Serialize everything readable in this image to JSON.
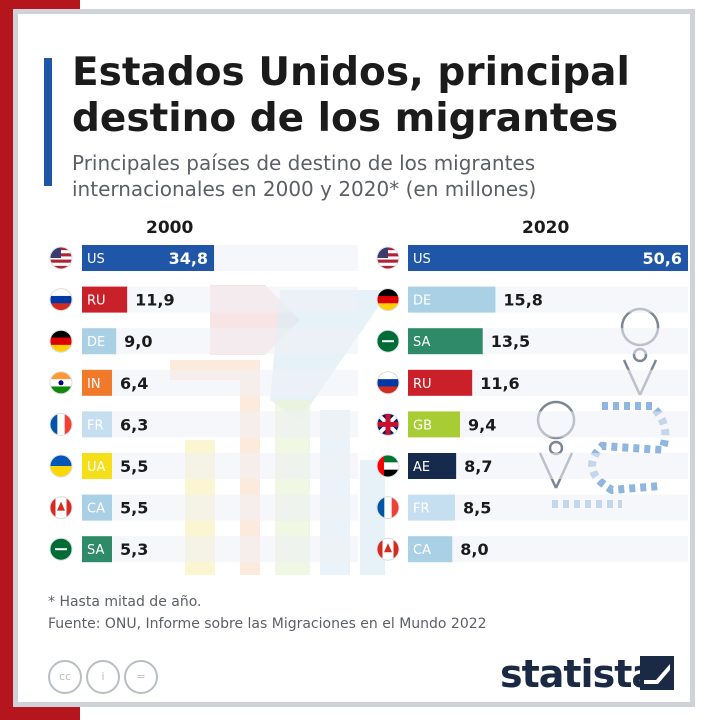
{
  "header": {
    "title": "Estados Unidos, principal destino de los migrantes",
    "subtitle": "Principales países de destino de los migrantes internacionales en 2000 y 2020* (en millones)"
  },
  "chart_data": {
    "type": "bar",
    "unit": "millones",
    "panels": [
      {
        "year": "2000",
        "bars": [
          {
            "code": "US",
            "value": 34.8,
            "label": "34,8",
            "color": "#1f56a8",
            "flag": "flag-us-icon"
          },
          {
            "code": "RU",
            "value": 11.9,
            "label": "11,9",
            "color": "#c9202a",
            "flag": "flag-ru-icon"
          },
          {
            "code": "DE",
            "value": 9.0,
            "label": "9,0",
            "color": "#a9d0e4",
            "flag": "flag-de-icon"
          },
          {
            "code": "IN",
            "value": 6.4,
            "label": "6,4",
            "color": "#f07a2a",
            "flag": "flag-in-icon"
          },
          {
            "code": "FR",
            "value": 6.3,
            "label": "6,3",
            "color": "#c6dff0",
            "flag": "flag-fr-icon"
          },
          {
            "code": "UA",
            "value": 5.5,
            "label": "5,5",
            "color": "#f5df1a",
            "flag": "flag-ua-icon"
          },
          {
            "code": "CA",
            "value": 5.5,
            "label": "5,5",
            "color": "#a9d0e4",
            "flag": "flag-ca-icon"
          },
          {
            "code": "SA",
            "value": 5.3,
            "label": "5,3",
            "color": "#2e8a68",
            "flag": "flag-sa-icon"
          }
        ]
      },
      {
        "year": "2020",
        "bars": [
          {
            "code": "US",
            "value": 50.6,
            "label": "50,6",
            "color": "#1f56a8",
            "flag": "flag-us-icon"
          },
          {
            "code": "DE",
            "value": 15.8,
            "label": "15,8",
            "color": "#a9d0e4",
            "flag": "flag-de-icon"
          },
          {
            "code": "SA",
            "value": 13.5,
            "label": "13,5",
            "color": "#2e8a68",
            "flag": "flag-sa-icon"
          },
          {
            "code": "RU",
            "value": 11.6,
            "label": "11,6",
            "color": "#c9202a",
            "flag": "flag-ru-icon"
          },
          {
            "code": "GB",
            "value": 9.4,
            "label": "9,4",
            "color": "#a8cc34",
            "flag": "flag-gb-icon"
          },
          {
            "code": "AE",
            "value": 8.7,
            "label": "8,7",
            "color": "#152a4c",
            "flag": "flag-ae-icon"
          },
          {
            "code": "FR",
            "value": 8.5,
            "label": "8,5",
            "color": "#c6dff0",
            "flag": "flag-fr-icon"
          },
          {
            "code": "CA",
            "value": 8.0,
            "label": "8,0",
            "color": "#a9d0e4",
            "flag": "flag-ca-icon"
          }
        ]
      }
    ]
  },
  "footer": {
    "footnote": "* Hasta mitad de año.",
    "source": "Fuente: ONU, Informe sobre las Migraciones en el Mundo 2022",
    "brand": "statista",
    "license_icons": [
      "cc-icon",
      "by-icon",
      "nd-icon"
    ],
    "license_labels": [
      "cc",
      "i",
      "="
    ]
  }
}
